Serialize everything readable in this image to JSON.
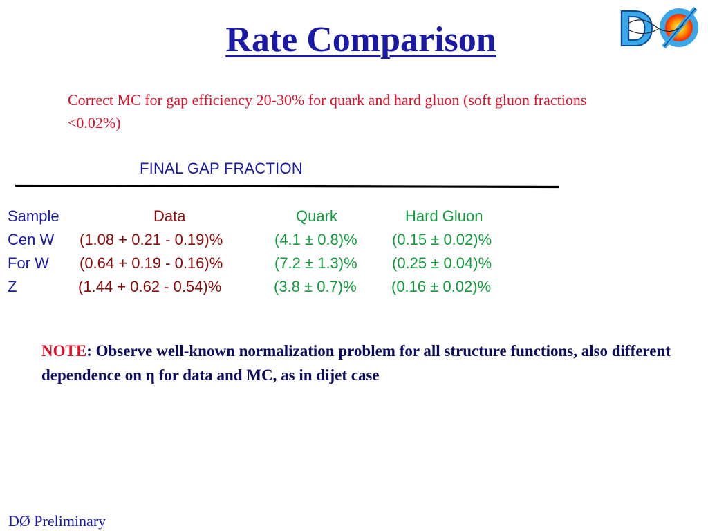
{
  "slide": {
    "title": "Rate Comparison",
    "intro": "Correct MC for gap efficiency 20-30% for quark and hard gluon (soft gluon fractions <0.02%)",
    "table_title": "FINAL GAP FRACTION",
    "headers": {
      "sample": "Sample",
      "data": "Data",
      "quark": "Quark",
      "hard_gluon": "Hard Gluon"
    },
    "rows": [
      {
        "sample": "Cen W",
        "data": "(1.08 + 0.21 - 0.19)%",
        "quark": "(4.1 ± 0.8)%",
        "hard_gluon": "(0.15 ± 0.02)%"
      },
      {
        "sample": "For W",
        "data": "(0.64 + 0.19 - 0.16)%",
        "quark": "(7.2 ± 1.3)%",
        "hard_gluon": "(0.25 ± 0.04)%"
      },
      {
        "sample": "Z",
        "data": "(1.44 + 0.62 - 0.54)%",
        "quark": "(3.8 ± 0.7)%",
        "hard_gluon": "(0.16 ± 0.02)%"
      }
    ],
    "note": {
      "keyword": "NOTE",
      "text": ": Observe well-known normalization problem for all structure functions, also different dependence on η for data and MC, as in dijet case"
    },
    "footer": "DØ Preliminary",
    "logo_text": "DØ"
  },
  "colors": {
    "title_blue": "#1a1aa6",
    "intro_red": "#e0102a",
    "data_darkred": "#8b0a0a",
    "mc_green": "#119b3c",
    "note_navy": "#0c0c60"
  }
}
